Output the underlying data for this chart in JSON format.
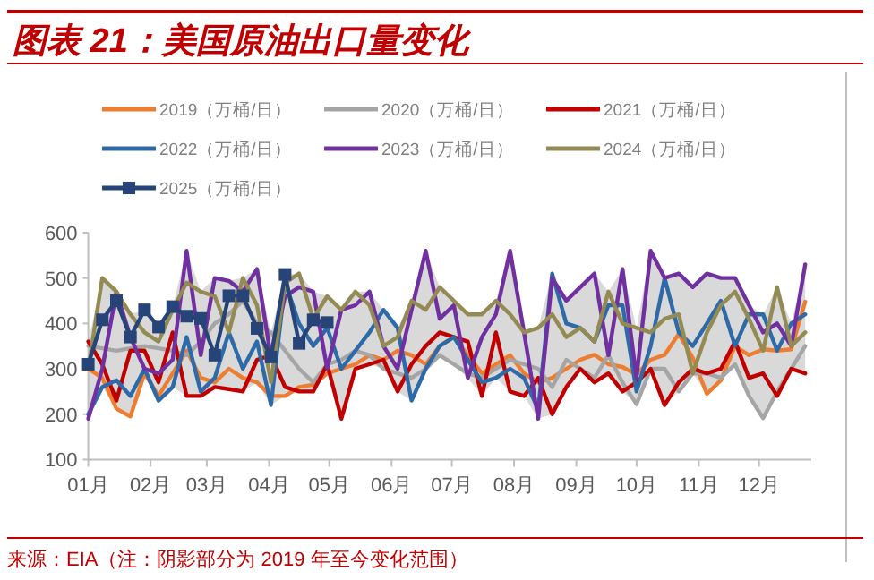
{
  "chart_data": {
    "type": "line",
    "title": "图表 21：美国原油出口量变化",
    "annotations": [
      "来源：EIA（注：阴影部分为 2019 年至今变化范围）"
    ],
    "x": [
      "--01-01",
      "--01-08",
      "--01-15",
      "--01-22",
      "--01-29",
      "--02-05",
      "--02-12",
      "--02-19",
      "--02-26",
      "--03-05",
      "--03-12",
      "--03-19",
      "--03-26",
      "--04-02",
      "--04-09",
      "--04-16",
      "--04-23",
      "--04-30",
      "--05-07",
      "--05-14",
      "--05-21",
      "--05-28",
      "--06-04",
      "--06-11",
      "--06-18",
      "--06-25",
      "--07-02",
      "--07-09",
      "--07-16",
      "--07-23",
      "--07-30",
      "--08-06",
      "--08-13",
      "--08-20",
      "--08-27",
      "--09-03",
      "--09-10",
      "--09-17",
      "--09-24",
      "--10-01",
      "--10-08",
      "--10-15",
      "--10-22",
      "--10-29",
      "--11-05",
      "--11-12",
      "--11-19",
      "--11-26",
      "--12-03",
      "--12-10",
      "--12-17",
      "--12-24"
    ],
    "xlim": [
      "--01-01",
      "--12-27"
    ],
    "xticks": [
      {
        "value": "--01-01",
        "label": "01月"
      },
      {
        "value": "--02-01",
        "label": "02月"
      },
      {
        "value": "--03-01",
        "label": "03月"
      },
      {
        "value": "--04-01",
        "label": "04月"
      },
      {
        "value": "--05-01",
        "label": "05月"
      },
      {
        "value": "--06-01",
        "label": "06月"
      },
      {
        "value": "--07-01",
        "label": "07月"
      },
      {
        "value": "--08-01",
        "label": "08月"
      },
      {
        "value": "--09-01",
        "label": "09月"
      },
      {
        "value": "--10-01",
        "label": "10月"
      },
      {
        "value": "--11-01",
        "label": "11月"
      },
      {
        "value": "--12-01",
        "label": "12月"
      }
    ],
    "ylim": [
      100,
      600
    ],
    "yticks": [
      100,
      200,
      300,
      400,
      500,
      600
    ],
    "grid": false,
    "legend": "top",
    "marker": "none",
    "line_style": "solid",
    "series": [
      {
        "name": "2019（万桶/日）",
        "color": "#ed7d31",
        "values": [
          300,
          280,
          212,
          195,
          290,
          240,
          290,
          340,
          280,
          270,
          300,
          280,
          270,
          240,
          240,
          260,
          265,
          290,
          300,
          310,
          330,
          320,
          340,
          330,
          310,
          350,
          370,
          330,
          290,
          310,
          330,
          290,
          270,
          280,
          300,
          320,
          331,
          310,
          304,
          287,
          320,
          331,
          377,
          324,
          245,
          275,
          350,
          330,
          343,
          340,
          343,
          448
        ]
      },
      {
        "name": "2020（万桶/日）",
        "color": "#a5a5a5",
        "values": [
          350,
          345,
          340,
          345,
          350,
          345,
          340,
          330,
          360,
          400,
          420,
          450,
          400,
          380,
          340,
          300,
          270,
          310,
          320,
          340,
          330,
          300,
          290,
          280,
          300,
          330,
          310,
          290,
          280,
          300,
          320,
          310,
          300,
          260,
          320,
          300,
          280,
          330,
          270,
          222,
          300,
          300,
          250,
          290,
          290,
          280,
          310,
          240,
          191,
          250,
          300,
          350
        ]
      },
      {
        "name": "2021（万桶/日）",
        "color": "#c00000",
        "values": [
          360,
          310,
          230,
          340,
          340,
          270,
          380,
          240,
          240,
          260,
          255,
          250,
          320,
          330,
          260,
          250,
          250,
          310,
          190,
          300,
          310,
          320,
          250,
          310,
          350,
          380,
          370,
          360,
          240,
          380,
          250,
          240,
          280,
          200,
          260,
          300,
          270,
          290,
          250,
          270,
          300,
          220,
          270,
          300,
          290,
          300,
          360,
          280,
          290,
          240,
          300,
          290
        ]
      },
      {
        "name": "2022（万桶/日）",
        "color": "#2e6aa8",
        "values": [
          200,
          260,
          275,
          240,
          300,
          230,
          260,
          370,
          250,
          280,
          380,
          300,
          360,
          220,
          490,
          400,
          350,
          390,
          300,
          340,
          380,
          430,
          390,
          230,
          300,
          350,
          370,
          320,
          270,
          280,
          300,
          280,
          210,
          510,
          400,
          390,
          360,
          440,
          440,
          250,
          350,
          500,
          380,
          350,
          400,
          450,
          350,
          420,
          420,
          340,
          400,
          420
        ]
      },
      {
        "name": "2023（万桶/日）",
        "color": "#7030a0",
        "values": [
          190,
          300,
          470,
          370,
          300,
          290,
          320,
          560,
          330,
          500,
          494,
          470,
          520,
          324,
          460,
          480,
          470,
          300,
          430,
          440,
          470,
          350,
          300,
          430,
          560,
          410,
          440,
          280,
          370,
          420,
          560,
          380,
          190,
          500,
          450,
          480,
          510,
          330,
          520,
          280,
          560,
          500,
          510,
          480,
          510,
          500,
          500,
          440,
          380,
          400,
          350,
          530
        ]
      },
      {
        "name": "2024（万桶/日）",
        "color": "#948a54",
        "values": [
          300,
          500,
          470,
          420,
          380,
          360,
          430,
          490,
          470,
          460,
          380,
          500,
          440,
          270,
          490,
          510,
          410,
          460,
          430,
          470,
          440,
          350,
          370,
          450,
          430,
          480,
          450,
          420,
          420,
          450,
          420,
          380,
          390,
          420,
          370,
          390,
          360,
          470,
          400,
          390,
          380,
          410,
          420,
          290,
          380,
          440,
          470,
          410,
          340,
          480,
          350,
          380
        ]
      },
      {
        "name": "2025（万桶/日）",
        "color": "#264478",
        "marker": "square",
        "x": [
          "--01-01",
          "--01-08",
          "--01-15",
          "--01-22",
          "--01-29",
          "--02-05",
          "--02-12",
          "--02-19",
          "--02-26",
          "--03-05",
          "--03-12",
          "--03-19",
          "--03-26",
          "--04-02",
          "--04-09",
          "--04-16",
          "--04-23",
          "--04-30"
        ],
        "values": [
          310,
          408,
          450,
          370,
          430,
          392,
          437,
          416,
          411,
          330,
          461,
          461,
          389,
          326,
          508,
          356,
          408,
          402
        ]
      }
    ]
  }
}
